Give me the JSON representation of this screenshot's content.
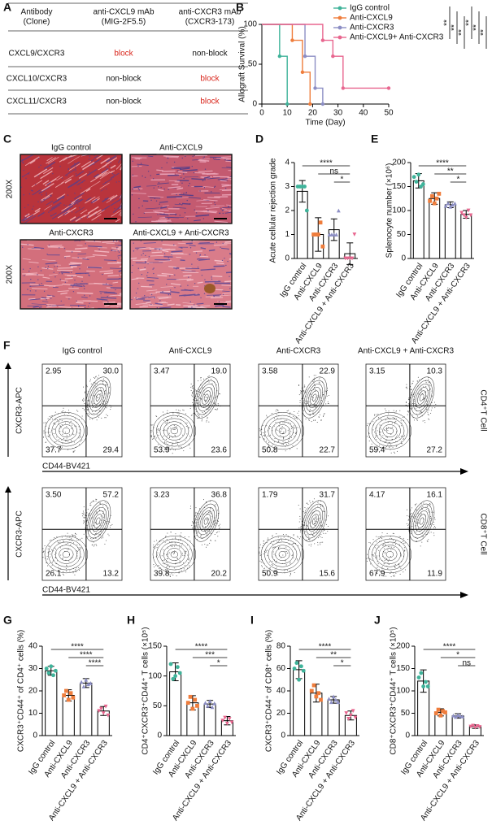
{
  "panel_labels": {
    "a": "A",
    "b": "B",
    "c": "C",
    "d": "D",
    "e": "E",
    "f": "F",
    "g": "G",
    "h": "H",
    "i": "I",
    "j": "J"
  },
  "table": {
    "header": [
      [
        "Antibody",
        "(Clone)"
      ],
      [
        "anti-CXCL9 mAb",
        "(MIG-2F5.5)"
      ],
      [
        "anti-CXCR3 mAb",
        "(CXCR3-173)"
      ]
    ],
    "rows": [
      [
        "CXCL9/CXCR3",
        "block",
        "non-block"
      ],
      [
        "CXCL10/CXCR3",
        "non-block",
        "block"
      ],
      [
        "CXCL11/CXCR3",
        "non-block",
        "block"
      ]
    ]
  },
  "histology": {
    "magnification": [
      "200X",
      "200X"
    ],
    "panels": [
      "IgG control",
      "Anti-CXCL9",
      "Anti-CXCR3",
      "Anti-CXCL9 + Anti-CXCR3"
    ]
  },
  "flow": {
    "columns": [
      "IgG control",
      "Anti-CXCL9",
      "Anti-CXCR3",
      "Anti-CXCL9 + Anti-CXCR3"
    ],
    "y_label": "CXCR3-APC",
    "x_label": "CD44-BV421",
    "rows": [
      {
        "label": "CD4⁺T Cell",
        "plots": [
          [
            "2.95",
            "30.0",
            "37.7",
            "29.4"
          ],
          [
            "3.47",
            "19.0",
            "53.9",
            "23.6"
          ],
          [
            "3.58",
            "22.9",
            "50.8",
            "22.7"
          ],
          [
            "3.15",
            "10.3",
            "59.4",
            "27.2"
          ]
        ]
      },
      {
        "label": "CD8⁺T Cell",
        "plots": [
          [
            "3.50",
            "57.2",
            "26.1",
            "13.2"
          ],
          [
            "3.23",
            "36.8",
            "39.8",
            "20.2"
          ],
          [
            "1.79",
            "31.7",
            "50.9",
            "15.6"
          ],
          [
            "4.17",
            "16.1",
            "67.9",
            "11.9"
          ]
        ]
      }
    ]
  },
  "chart_data": [
    {
      "type": "step",
      "x_label": "Time (Day)",
      "y_label": "Allograft Survival (%)",
      "xlim": [
        0,
        50
      ],
      "ylim": [
        0,
        100
      ],
      "xticks": [
        0,
        10,
        20,
        30,
        40,
        50
      ],
      "yticks": [
        0,
        50,
        100
      ],
      "series": [
        {
          "name": "IgG control",
          "color": "#3fb39a",
          "x": [
            0,
            7,
            10
          ],
          "values": [
            100,
            60,
            0
          ]
        },
        {
          "name": "Anti-CXCL9",
          "color": "#ef7d3c",
          "x": [
            0,
            12,
            16,
            19
          ],
          "values": [
            100,
            80,
            40,
            0
          ]
        },
        {
          "name": "Anti-CXCR3",
          "color": "#8c8ec4",
          "x": [
            0,
            17,
            21,
            24
          ],
          "values": [
            100,
            60,
            20,
            0
          ]
        },
        {
          "name": "Anti-CXCL9+ Anti-CXCR3",
          "color": "#e8668f",
          "x": [
            0,
            24,
            28,
            32,
            50
          ],
          "values": [
            100,
            80,
            60,
            20,
            20
          ]
        }
      ],
      "significance": [
        "**",
        "**",
        "**",
        "**",
        "**",
        "**"
      ]
    },
    {
      "type": "bar",
      "y_label": "Acute cellular rejection grade",
      "ylim": [
        0,
        4
      ],
      "yticks": [
        0,
        1,
        2,
        3,
        4
      ],
      "categories": [
        "IgG control",
        "Anti-CXCL9",
        "Anti-CXCR3",
        "Anti-CXCL9 + Anti-CXCR3"
      ],
      "colors": [
        "#3fb39a",
        "#ef7d3c",
        "#8c8ec4",
        "#e8668f"
      ],
      "values": [
        2.8,
        1.0,
        1.2,
        0.2
      ],
      "errors": [
        0.45,
        0.7,
        0.45,
        0.45
      ],
      "points": [
        [
          3,
          3,
          3,
          3,
          2
        ],
        [
          1,
          1,
          1,
          1.5,
          0.5
        ],
        [
          1,
          1,
          1,
          1,
          2
        ],
        [
          0,
          0,
          0,
          0,
          1
        ]
      ],
      "significance": [
        "****",
        "ns",
        "*"
      ]
    },
    {
      "type": "bar",
      "y_label": "Splenocyte number (×10⁶)",
      "ylim": [
        0,
        200
      ],
      "yticks": [
        0,
        50,
        100,
        150,
        200
      ],
      "categories": [
        "IgG control",
        "Anti-CXCL9",
        "Anti-CXCR3",
        "Anti-CXCL9 + Anti-CXCR3"
      ],
      "colors": [
        "#3fb39a",
        "#ef7d3c",
        "#8c8ec4",
        "#e8668f"
      ],
      "values": [
        162,
        125,
        112,
        92
      ],
      "errors": [
        15,
        12,
        6,
        8
      ],
      "points": [
        [
          170,
          160,
          175,
          150,
          155
        ],
        [
          120,
          130,
          115,
          125,
          135
        ],
        [
          110,
          115,
          108,
          112,
          115
        ],
        [
          95,
          90,
          85,
          100,
          90
        ]
      ],
      "significance": [
        "****",
        "**",
        "*"
      ]
    },
    {
      "type": "bar",
      "y_label": "CXCR3⁺CD44⁺ of CD4⁺ cells (%)",
      "ylim": [
        0,
        40
      ],
      "yticks": [
        0,
        10,
        20,
        30,
        40
      ],
      "categories": [
        "IgG control",
        "Anti-CXCL9",
        "Anti-CXCR3",
        "Anti-CXCL9 + Anti-CXCR3"
      ],
      "colors": [
        "#3fb39a",
        "#ef7d3c",
        "#8c8ec4",
        "#e8668f"
      ],
      "values": [
        29,
        18,
        23.5,
        11
      ],
      "errors": [
        2,
        2.5,
        2,
        2
      ],
      "points": [
        [
          30,
          28,
          31,
          27,
          29
        ],
        [
          18,
          20,
          16,
          19,
          17
        ],
        [
          24,
          22,
          25,
          23,
          23.5
        ],
        [
          11,
          12,
          10,
          13,
          9
        ]
      ],
      "significance": [
        "****",
        "****",
        "****"
      ]
    },
    {
      "type": "bar",
      "y_label": "CD4⁺CXCR3⁺CD44⁺ T cells (×10⁵)",
      "ylim": [
        0,
        150
      ],
      "yticks": [
        0,
        50,
        100,
        150
      ],
      "categories": [
        "IgG control",
        "Anti-CXCL9",
        "Anti-CXCR3",
        "Anti-CXCL9 + Anti-CXCR3"
      ],
      "colors": [
        "#3fb39a",
        "#ef7d3c",
        "#8c8ec4",
        "#e8668f"
      ],
      "values": [
        107,
        55,
        53,
        25
      ],
      "errors": [
        15,
        12,
        6,
        7
      ],
      "points": [
        [
          120,
          95,
          100,
          115,
          105
        ],
        [
          55,
          65,
          45,
          60,
          50
        ],
        [
          55,
          50,
          58,
          48,
          54
        ],
        [
          25,
          30,
          20,
          28,
          22
        ]
      ],
      "significance": [
        "****",
        "***",
        "*"
      ]
    },
    {
      "type": "bar",
      "y_label": "CXCR3⁺CD44⁺ of CD8⁺ cells (%)",
      "ylim": [
        0,
        80
      ],
      "yticks": [
        0,
        20,
        40,
        60,
        80
      ],
      "categories": [
        "IgG control",
        "Anti-CXCL9",
        "Anti-CXCR3",
        "Anti-CXCL9 + Anti-CXCR3"
      ],
      "colors": [
        "#3fb39a",
        "#ef7d3c",
        "#8c8ec4",
        "#e8668f"
      ],
      "values": [
        59,
        38,
        32,
        18
      ],
      "errors": [
        8,
        8,
        3,
        4
      ],
      "points": [
        [
          60,
          65,
          50,
          62,
          58
        ],
        [
          40,
          45,
          35,
          38,
          32
        ],
        [
          33,
          30,
          35,
          32,
          30
        ],
        [
          20,
          15,
          18,
          22,
          16
        ]
      ],
      "significance": [
        "****",
        "**",
        "*"
      ]
    },
    {
      "type": "bar",
      "y_label": "CD8⁺CXCR3⁺CD44⁺ T cells (×10⁵)",
      "ylim": [
        0,
        200
      ],
      "yticks": [
        0,
        50,
        100,
        150,
        200
      ],
      "categories": [
        "IgG control",
        "Anti-CXCL9",
        "Anti-CXCR3",
        "Anti-CXCL9 + Anti-CXCR3"
      ],
      "colors": [
        "#3fb39a",
        "#ef7d3c",
        "#8c8ec4",
        "#e8668f"
      ],
      "values": [
        122,
        52,
        44,
        20
      ],
      "errors": [
        25,
        8,
        5,
        4
      ],
      "points": [
        [
          130,
          140,
          110,
          120,
          110
        ],
        [
          50,
          58,
          45,
          55,
          52
        ],
        [
          45,
          42,
          46,
          44,
          43
        ],
        [
          20,
          22,
          18,
          21,
          19
        ]
      ],
      "significance": [
        "****",
        "*",
        "ns"
      ]
    }
  ]
}
